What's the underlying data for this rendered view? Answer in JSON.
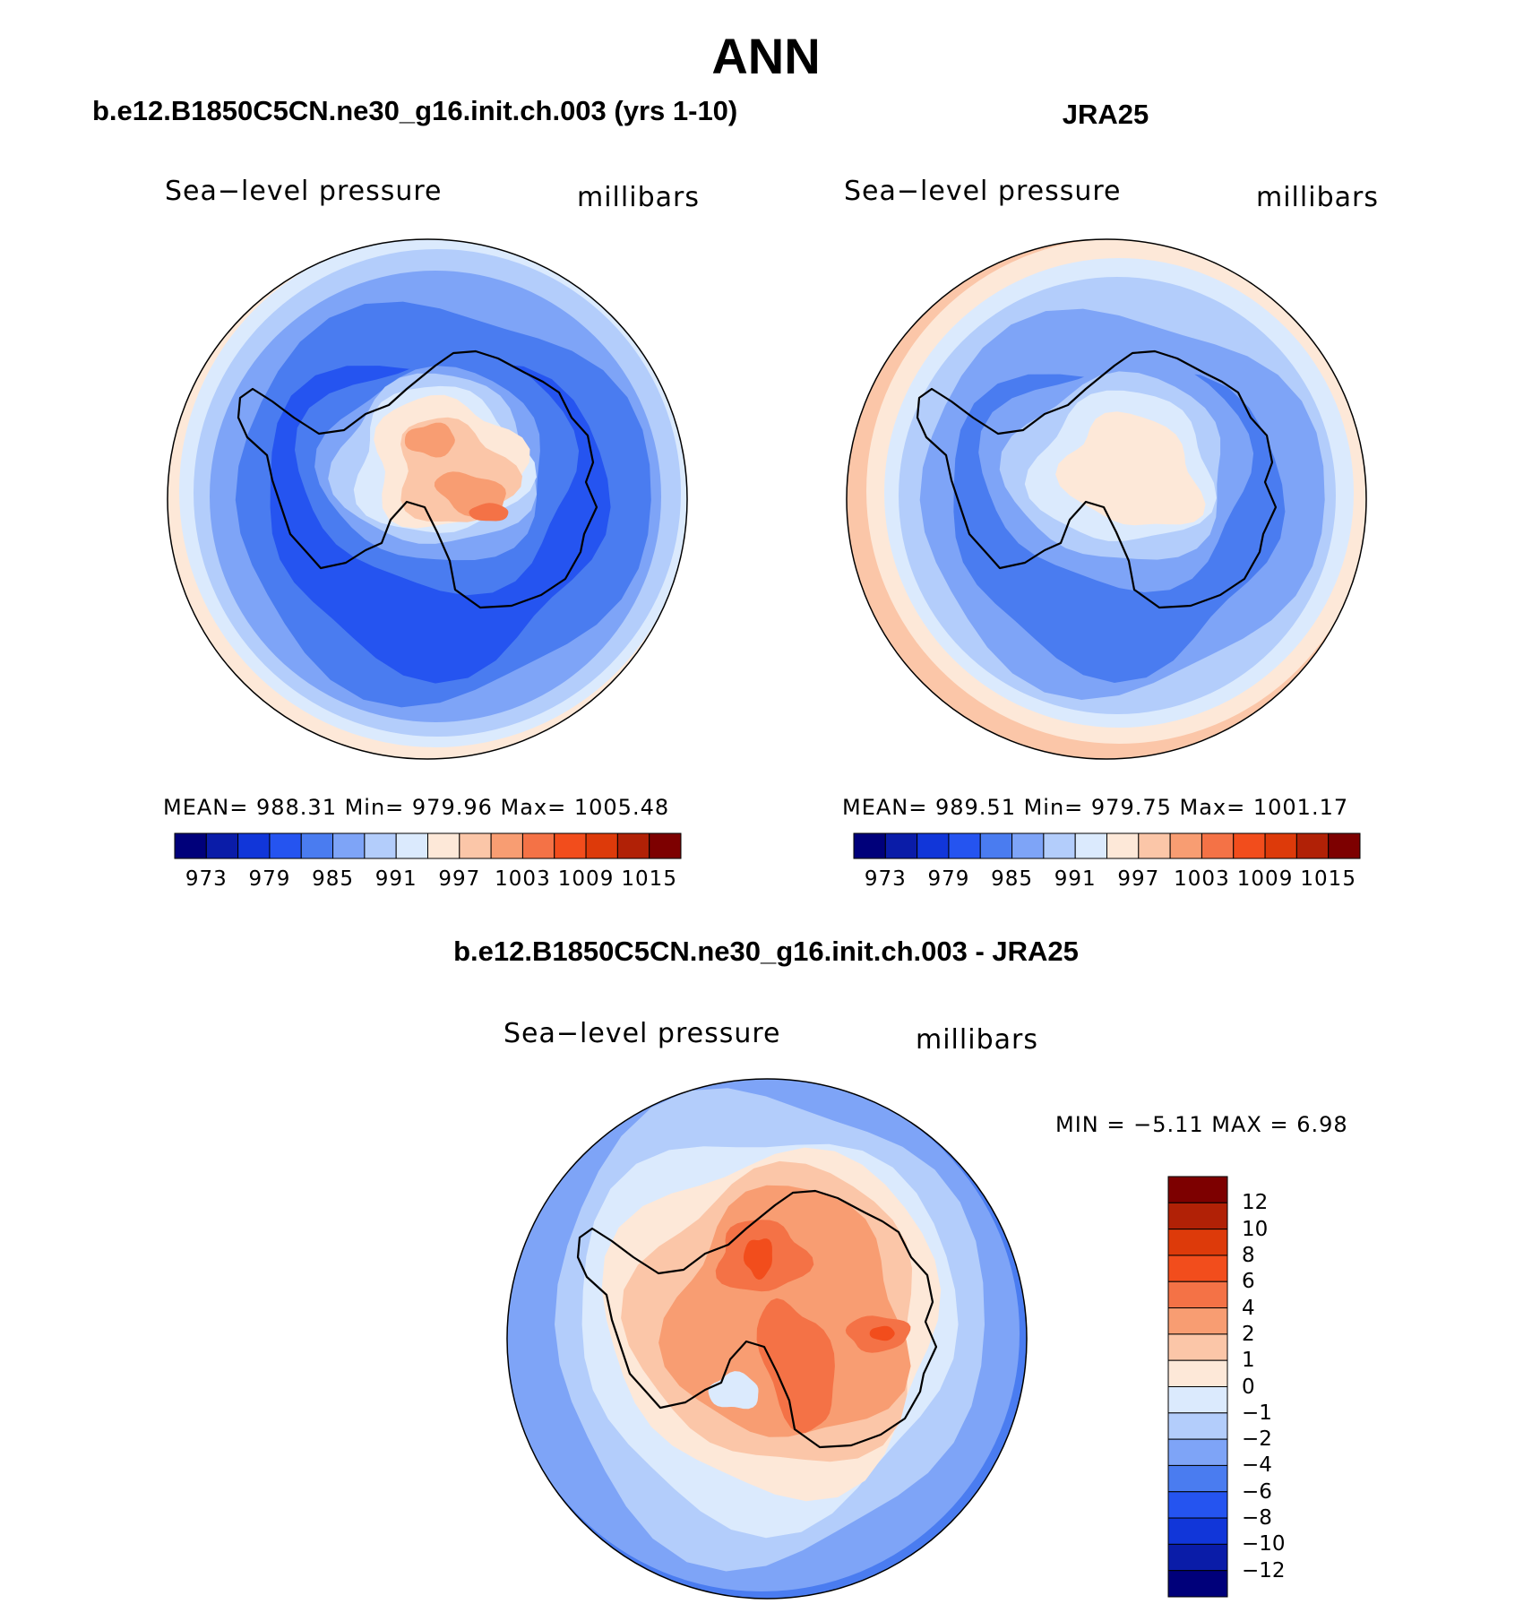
{
  "title": "ANN",
  "panels": {
    "model": {
      "case_title": "b.e12.B1850C5CN.ne30_g16.init.ch.003 (yrs 1-10)",
      "variable": "Sea−level pressure",
      "units": "millibars",
      "stats": "MEAN=  988.31    Min=  979.96    Max=  1005.48"
    },
    "obs": {
      "case_title": "JRA25",
      "variable": "Sea−level pressure",
      "units": "millibars",
      "stats": "MEAN=  989.51    Min=  979.75    Max=  1001.17"
    },
    "diff": {
      "case_title": "b.e12.B1850C5CN.ne30_g16.init.ch.003 - JRA25",
      "variable": "Sea−level pressure",
      "units": "millibars",
      "stats": "MIN =    −5.11  MAX =     6.98"
    }
  },
  "chart_data": [
    {
      "type": "heatmap",
      "name": "model",
      "title": "b.e12.B1850C5CN.ne30_g16.init.ch.003 (yrs 1-10)",
      "projection": "south-polar stereographic",
      "variable": "Sea-level pressure",
      "units": "millibars",
      "mean": 988.31,
      "min": 979.96,
      "max": 1005.48,
      "colorbar_levels": [
        973,
        976,
        979,
        982,
        985,
        988,
        991,
        994,
        997,
        1000,
        1003,
        1006,
        1009,
        1012,
        1015
      ],
      "colorbar_tick_labels": [
        "973",
        "979",
        "985",
        "991",
        "997",
        "1003",
        "1009",
        "1015"
      ],
      "colors": [
        "#00007a",
        "#0a1ca8",
        "#1136d9",
        "#2554f0",
        "#4a7cf0",
        "#7ea4f7",
        "#b3cdfb",
        "#dbeafd",
        "#fde8d8",
        "#fbc6a8",
        "#f89d72",
        "#f47246",
        "#f24d1c",
        "#dd3a0a",
        "#b12106",
        "#7d0000"
      ]
    },
    {
      "type": "heatmap",
      "name": "obs",
      "title": "JRA25",
      "projection": "south-polar stereographic",
      "variable": "Sea-level pressure",
      "units": "millibars",
      "mean": 989.51,
      "min": 979.75,
      "max": 1001.17,
      "colorbar_levels": [
        973,
        976,
        979,
        982,
        985,
        988,
        991,
        994,
        997,
        1000,
        1003,
        1006,
        1009,
        1012,
        1015
      ],
      "colorbar_tick_labels": [
        "973",
        "979",
        "985",
        "991",
        "997",
        "1003",
        "1009",
        "1015"
      ],
      "colors": [
        "#00007a",
        "#0a1ca8",
        "#1136d9",
        "#2554f0",
        "#4a7cf0",
        "#7ea4f7",
        "#b3cdfb",
        "#dbeafd",
        "#fde8d8",
        "#fbc6a8",
        "#f89d72",
        "#f47246",
        "#f24d1c",
        "#dd3a0a",
        "#b12106",
        "#7d0000"
      ]
    },
    {
      "type": "heatmap",
      "name": "diff",
      "title": "b.e12.B1850C5CN.ne30_g16.init.ch.003 - JRA25",
      "projection": "south-polar stereographic",
      "variable": "Sea-level pressure",
      "units": "millibars",
      "min": -5.11,
      "max": 6.98,
      "colorbar_levels": [
        12,
        10,
        8,
        6,
        4,
        2,
        1,
        0,
        -1,
        -2,
        -4,
        -6,
        -8,
        -10,
        -12
      ],
      "colorbar_tick_labels": [
        "12",
        "10",
        "8",
        "6",
        "4",
        "2",
        "1",
        "0",
        "−1",
        "−2",
        "−4",
        "−6",
        "−8",
        "−10",
        "−12"
      ],
      "colors": [
        "#7d0000",
        "#b12106",
        "#dd3a0a",
        "#f24d1c",
        "#f47246",
        "#f89d72",
        "#fbc6a8",
        "#fde8d8",
        "#dbeafd",
        "#b3cdfb",
        "#7ea4f7",
        "#4a7cf0",
        "#2554f0",
        "#1136d9",
        "#0a1ca8",
        "#00007a"
      ]
    }
  ]
}
